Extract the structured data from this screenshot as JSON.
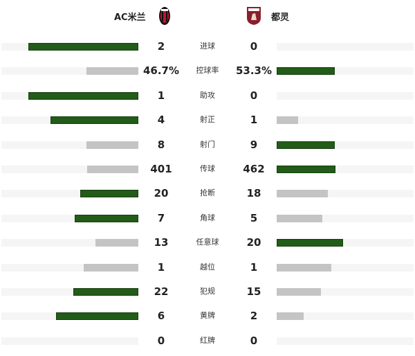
{
  "home": {
    "name": "AC米兰",
    "logo": "ac-milan-crest"
  },
  "away": {
    "name": "都灵",
    "logo": "torino-crest"
  },
  "colors": {
    "win": "#225c18",
    "lose": "#c4c4c4",
    "track": "#f5f5f5"
  },
  "stats": [
    {
      "label": "进球",
      "home": "2",
      "away": "0",
      "home_pct": 80.3,
      "away_pct": 0,
      "leader": "home"
    },
    {
      "label": "控球率",
      "home": "46.7%",
      "away": "53.3%",
      "home_pct": 37.9,
      "away_pct": 42.4,
      "leader": "away"
    },
    {
      "label": "助攻",
      "home": "1",
      "away": "0",
      "home_pct": 80.3,
      "away_pct": 0,
      "leader": "home"
    },
    {
      "label": "射正",
      "home": "4",
      "away": "1",
      "home_pct": 64.1,
      "away_pct": 15.7,
      "leader": "home"
    },
    {
      "label": "射门",
      "home": "8",
      "away": "9",
      "home_pct": 37.9,
      "away_pct": 42.4,
      "leader": "away"
    },
    {
      "label": "传球",
      "home": "401",
      "away": "462",
      "home_pct": 37.4,
      "away_pct": 42.9,
      "leader": "away"
    },
    {
      "label": "抢断",
      "home": "20",
      "away": "18",
      "home_pct": 42.4,
      "away_pct": 37.4,
      "leader": "home"
    },
    {
      "label": "角球",
      "home": "7",
      "away": "5",
      "home_pct": 46.5,
      "away_pct": 33.3,
      "leader": "home"
    },
    {
      "label": "任意球",
      "home": "13",
      "away": "20",
      "home_pct": 31.3,
      "away_pct": 48.5,
      "leader": "away"
    },
    {
      "label": "越位",
      "home": "1",
      "away": "1",
      "home_pct": 39.9,
      "away_pct": 39.9,
      "leader": "none"
    },
    {
      "label": "犯规",
      "home": "22",
      "away": "15",
      "home_pct": 47.5,
      "away_pct": 32.3,
      "leader": "home"
    },
    {
      "label": "黄牌",
      "home": "6",
      "away": "2",
      "home_pct": 60.1,
      "away_pct": 19.7,
      "leader": "home"
    },
    {
      "label": "红牌",
      "home": "0",
      "away": "0",
      "home_pct": 0,
      "away_pct": 0,
      "leader": "none"
    }
  ]
}
